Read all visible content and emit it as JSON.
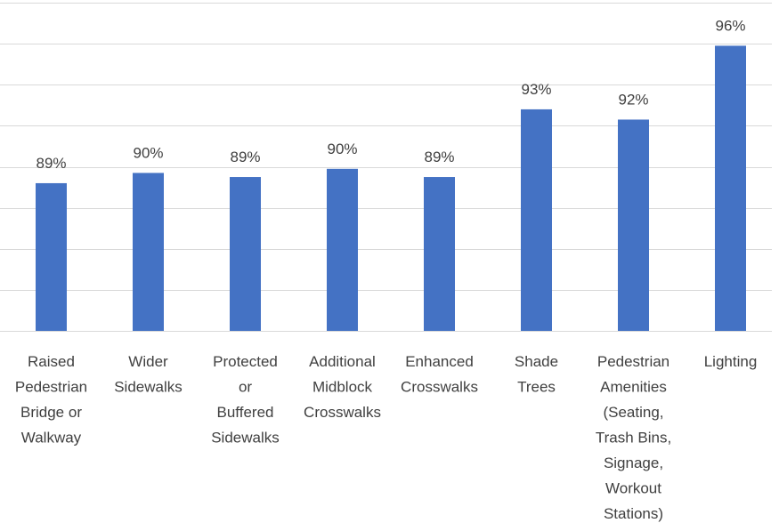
{
  "chart_data": {
    "type": "bar",
    "categories": [
      [
        "Raised",
        "Pedestrian",
        "Bridge or",
        "Walkway"
      ],
      [
        "Wider",
        "Sidewalks"
      ],
      [
        "Protected",
        "or",
        "Buffered",
        "Sidewalks"
      ],
      [
        "Additional",
        "Midblock",
        "Crosswalks"
      ],
      [
        "Enhanced",
        "Crosswalks"
      ],
      [
        "Shade",
        "Trees"
      ],
      [
        "Pedestrian",
        "Amenities",
        "(Seating,",
        "Trash Bins,",
        "Signage,",
        "Workout",
        "Stations)"
      ],
      [
        "Lighting"
      ]
    ],
    "values": [
      89.2,
      89.7,
      89.5,
      89.9,
      89.5,
      92.8,
      92.3,
      95.9
    ],
    "data_labels": [
      "89%",
      "90%",
      "89%",
      "90%",
      "89%",
      "93%",
      "92%",
      "96%"
    ],
    "ylim": [
      82,
      98
    ],
    "ytick_step": 2,
    "grid": true,
    "colors": {
      "bar": "#4472c4",
      "grid": "#d9d9d9",
      "text": "#404040"
    }
  }
}
